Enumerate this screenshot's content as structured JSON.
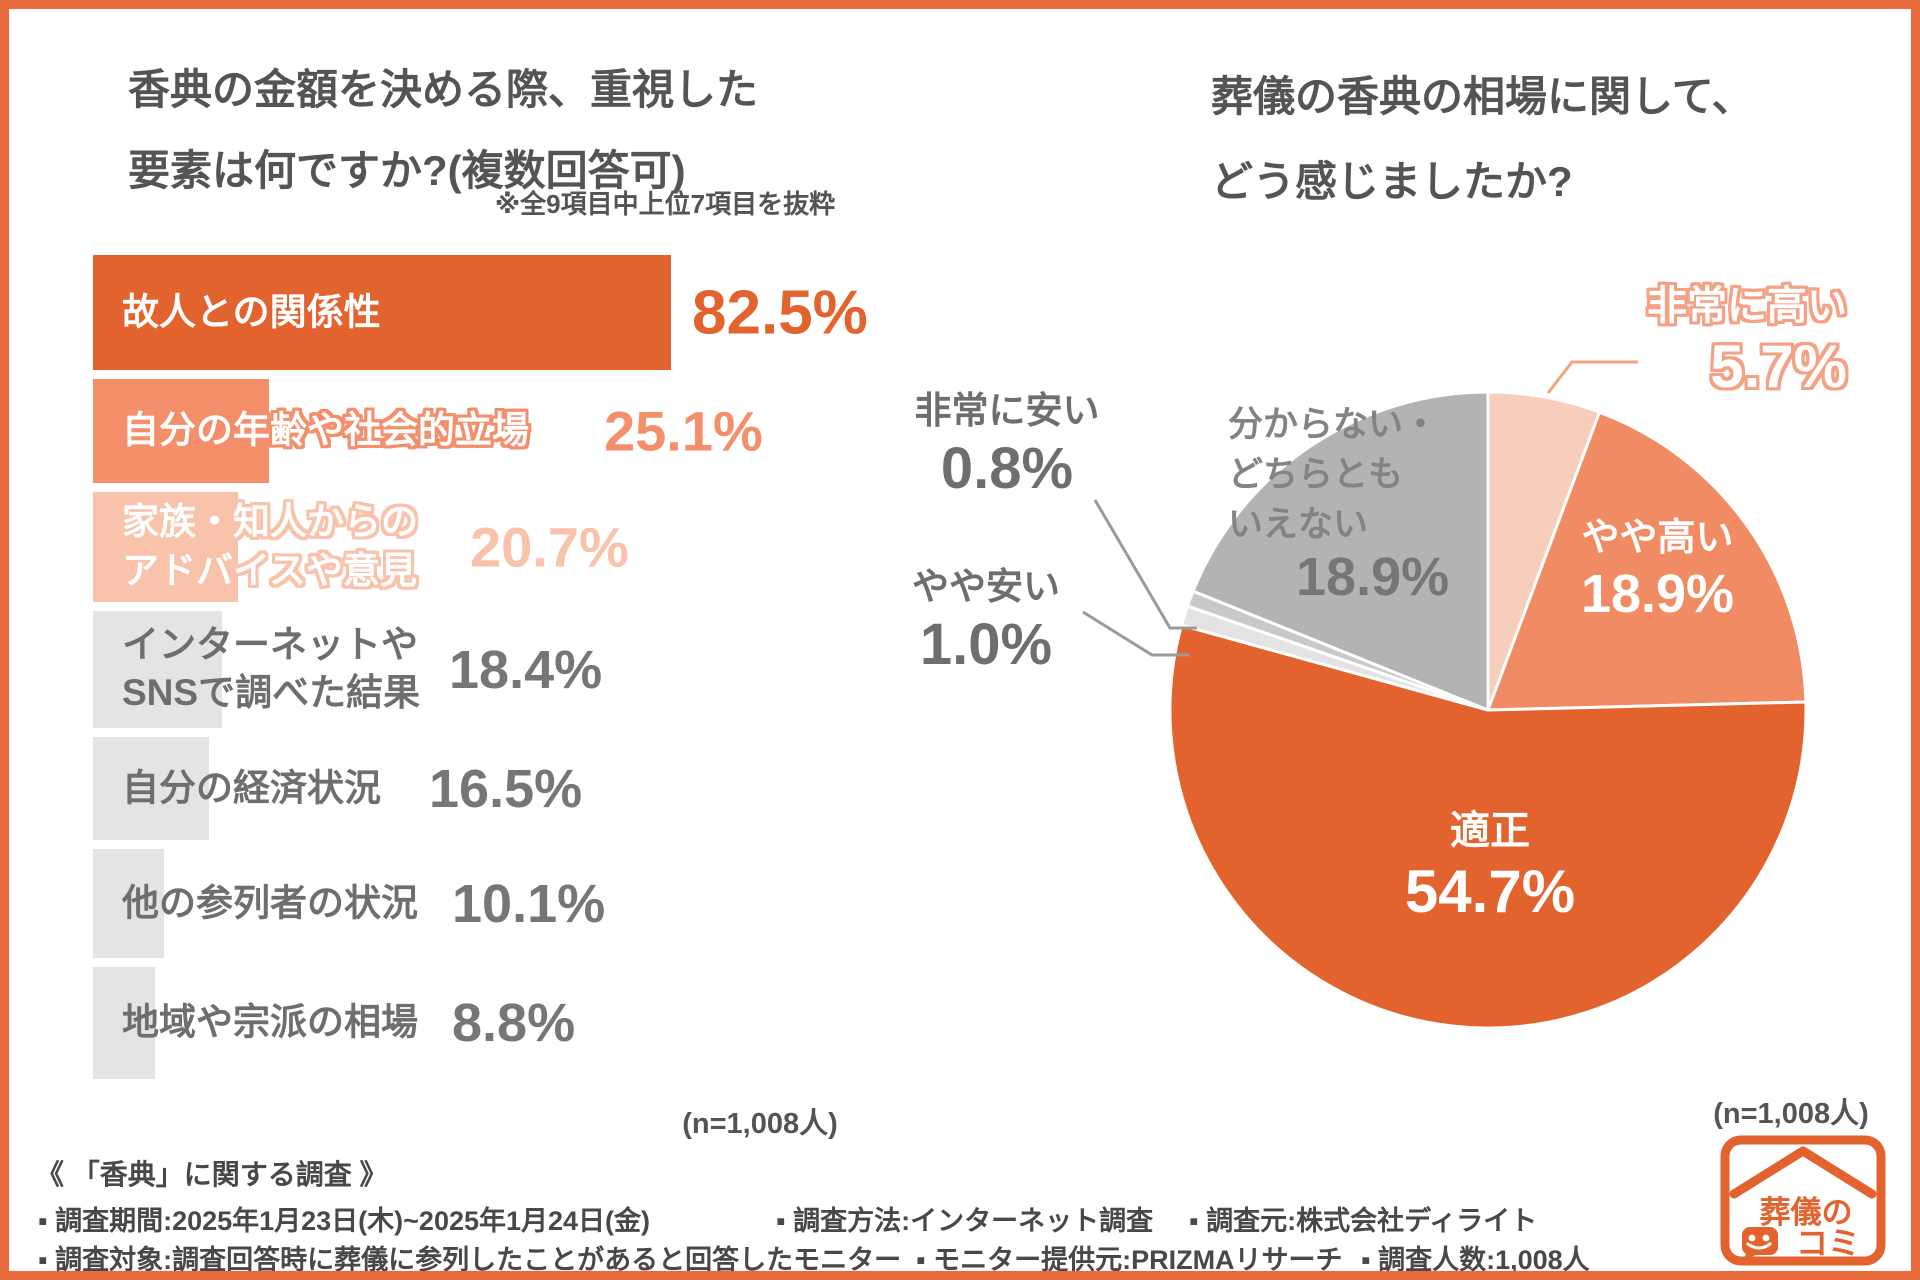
{
  "accent_colors": {
    "frame_orange": "#E8693B",
    "primary_orange": "#E2632E",
    "salmon": "#F48F6B",
    "pale_peach_bar": "#F9C2AB",
    "pale_peach_slice": "#F7CEBC",
    "light_gray_bar": "#E4E4E4",
    "gray_slice": "#B3B3B3",
    "sliver_gray_dark": "#C9C9C9",
    "sliver_gray_light": "#E3E3E3",
    "text_dark_gray": "#545454",
    "leader_salmon": "#F4A284",
    "leader_gray": "#9A9A9A"
  },
  "chart_data": [
    {
      "type": "bar",
      "orientation": "horizontal",
      "title": "香典の金額を決める際、重視した要素は何ですか?(複数回答可)",
      "title_lines": [
        "香典の金額を決める際、重視した",
        "要素は何ですか?(複数回答可)"
      ],
      "note": "※全9項目中上位7項目を抜粋",
      "sample": "(n=1,008人)",
      "xlim": [
        0,
        100
      ],
      "grid": false,
      "categories": [
        "故人との関係性",
        "自分の年齢や社会的立場",
        "家族・知人からのアドバイスや意見",
        "インターネットやSNSで調べた結果",
        "自分の経済状況",
        "他の参列者の状況",
        "地域や宗派の相場"
      ],
      "values": [
        82.5,
        25.1,
        20.7,
        18.4,
        16.5,
        10.1,
        8.8
      ],
      "items": [
        {
          "label_lines": [
            "故人との関係性"
          ],
          "value": 82.5,
          "display": "82.5%",
          "bar_color": "#E2632E",
          "label_style": "white",
          "value_color": "#E2632E"
        },
        {
          "label_lines": [
            "自分の年齢や社会的立場"
          ],
          "value": 25.1,
          "display": "25.1%",
          "bar_color": "#F48F6B",
          "label_style": "outline",
          "value_color": "#F48F6B"
        },
        {
          "label_lines": [
            "家族・知人からの",
            "アドバイスや意見"
          ],
          "value": 20.7,
          "display": "20.7%",
          "bar_color": "#F9C2AB",
          "label_style": "outline",
          "value_color": "#F9C2AB"
        },
        {
          "label_lines": [
            "インターネットや",
            "SNSで調べた結果"
          ],
          "value": 18.4,
          "display": "18.4%",
          "bar_color": "#E4E4E4",
          "label_style": "gray",
          "value_color": "#767676"
        },
        {
          "label_lines": [
            "自分の経済状況"
          ],
          "value": 16.5,
          "display": "16.5%",
          "bar_color": "#E4E4E4",
          "label_style": "gray",
          "value_color": "#767676"
        },
        {
          "label_lines": [
            "他の参列者の状況"
          ],
          "value": 10.1,
          "display": "10.1%",
          "bar_color": "#E4E4E4",
          "label_style": "gray",
          "value_color": "#767676"
        },
        {
          "label_lines": [
            "地域や宗派の相場"
          ],
          "value": 8.8,
          "display": "8.8%",
          "bar_color": "#E4E4E4",
          "label_style": "gray",
          "value_color": "#767676"
        }
      ]
    },
    {
      "type": "pie",
      "title": "葬儀の香典の相場に関して、どう感じましたか?",
      "title_lines": [
        "葬儀の香典の相場に関して、",
        "どう感じましたか?"
      ],
      "sample": "(n=1,008人)",
      "start_angle_deg": 0,
      "direction": "clockwise",
      "labels": [
        "非常に高い",
        "やや高い",
        "適正",
        "やや安い",
        "非常に安い",
        "分からない・どちらともいえない"
      ],
      "values": [
        5.7,
        18.9,
        54.7,
        1.0,
        0.8,
        18.9
      ],
      "slices": [
        {
          "label": "非常に高い",
          "value": 5.7,
          "display": "5.7%",
          "color": "#F7CEBC"
        },
        {
          "label": "やや高い",
          "value": 18.9,
          "display": "18.9%",
          "color": "#F08B63"
        },
        {
          "label": "適正",
          "value": 54.7,
          "display": "54.7%",
          "color": "#E2632E"
        },
        {
          "label": "やや安い",
          "value": 1.0,
          "display": "1.0%",
          "color": "#E3E3E3"
        },
        {
          "label": "非常に安い",
          "value": 0.8,
          "display": "0.8%",
          "color": "#C9C9C9"
        },
        {
          "label": "分からない・どちらともいえない",
          "value": 18.9,
          "display": "18.9%",
          "color": "#B3B3B3",
          "label_lines": [
            "分からない・",
            "どちらとも",
            "いえない"
          ]
        }
      ]
    }
  ],
  "footer": {
    "survey_title": "《 「香典」に関する調査 》",
    "line2": [
      "▪ 調査期間:2025年1月23日(木)~2025年1月24日(金)",
      "▪ 調査方法:インターネット調査",
      "▪ 調査元:株式会社ディライト"
    ],
    "line3": [
      "▪ 調査対象:調査回答時に葬儀に参列したことがあると回答したモニター",
      "▪ モニター提供元:PRIZMAリサーチ",
      "▪ 調査人数:1,008人"
    ]
  },
  "logo": {
    "text_top": "葬儀の",
    "text_bottom": "コミ",
    "color": "#E2632E"
  }
}
